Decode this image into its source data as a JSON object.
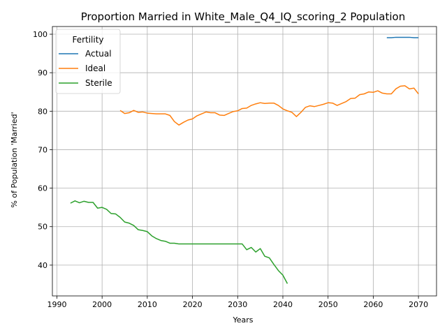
{
  "chart_data": {
    "type": "line",
    "title": "Proportion Married in White_Male_Q4_IQ_scoring_2 Population",
    "xlabel": "Years",
    "ylabel": "% of Population 'Married'",
    "xlim": [
      1989,
      2074
    ],
    "ylim": [
      32,
      102
    ],
    "xticks": [
      1990,
      2000,
      2010,
      2020,
      2030,
      2040,
      2050,
      2060,
      2070
    ],
    "yticks": [
      40,
      50,
      60,
      70,
      80,
      90,
      100
    ],
    "grid": true,
    "legend": {
      "title": "Fertility",
      "placement": "top-left"
    },
    "series": [
      {
        "name": "Actual",
        "color": "#1f77b4",
        "points": [
          [
            2063,
            99.1
          ],
          [
            2064,
            99.1
          ],
          [
            2065,
            99.2
          ],
          [
            2066,
            99.2
          ],
          [
            2067,
            99.2
          ],
          [
            2068,
            99.2
          ],
          [
            2069,
            99.1
          ],
          [
            2070,
            99.1
          ]
        ]
      },
      {
        "name": "Ideal",
        "color": "#ff7f0e",
        "points": [
          [
            2004,
            80.2
          ],
          [
            2005,
            79.4
          ],
          [
            2006,
            79.6
          ],
          [
            2007,
            80.2
          ],
          [
            2008,
            79.7
          ],
          [
            2009,
            79.8
          ],
          [
            2010,
            79.5
          ],
          [
            2011,
            79.4
          ],
          [
            2012,
            79.3
          ],
          [
            2013,
            79.3
          ],
          [
            2014,
            79.3
          ],
          [
            2015,
            78.9
          ],
          [
            2016,
            77.3
          ],
          [
            2017,
            76.4
          ],
          [
            2018,
            77.1
          ],
          [
            2019,
            77.7
          ],
          [
            2020,
            78.0
          ],
          [
            2021,
            78.8
          ],
          [
            2022,
            79.3
          ],
          [
            2023,
            79.8
          ],
          [
            2024,
            79.6
          ],
          [
            2025,
            79.6
          ],
          [
            2026,
            79.0
          ],
          [
            2027,
            78.9
          ],
          [
            2028,
            79.4
          ],
          [
            2029,
            79.9
          ],
          [
            2030,
            80.1
          ],
          [
            2031,
            80.7
          ],
          [
            2032,
            80.8
          ],
          [
            2033,
            81.5
          ],
          [
            2034,
            81.9
          ],
          [
            2035,
            82.2
          ],
          [
            2036,
            82.0
          ],
          [
            2037,
            82.1
          ],
          [
            2038,
            82.1
          ],
          [
            2039,
            81.5
          ],
          [
            2040,
            80.6
          ],
          [
            2041,
            80.1
          ],
          [
            2042,
            79.7
          ],
          [
            2043,
            78.6
          ],
          [
            2044,
            79.7
          ],
          [
            2045,
            81.0
          ],
          [
            2046,
            81.4
          ],
          [
            2047,
            81.2
          ],
          [
            2048,
            81.5
          ],
          [
            2049,
            81.8
          ],
          [
            2050,
            82.2
          ],
          [
            2051,
            82.1
          ],
          [
            2052,
            81.5
          ],
          [
            2053,
            82.0
          ],
          [
            2054,
            82.5
          ],
          [
            2055,
            83.3
          ],
          [
            2056,
            83.4
          ],
          [
            2057,
            84.3
          ],
          [
            2058,
            84.5
          ],
          [
            2059,
            85.0
          ],
          [
            2060,
            84.9
          ],
          [
            2061,
            85.3
          ],
          [
            2062,
            84.7
          ],
          [
            2063,
            84.5
          ],
          [
            2064,
            84.5
          ],
          [
            2065,
            85.8
          ],
          [
            2066,
            86.5
          ],
          [
            2067,
            86.6
          ],
          [
            2068,
            85.8
          ],
          [
            2069,
            86.0
          ],
          [
            2070,
            84.5
          ]
        ]
      },
      {
        "name": "Sterile",
        "color": "#2ca02c",
        "points": [
          [
            1993,
            56.1
          ],
          [
            1994,
            56.7
          ],
          [
            1995,
            56.2
          ],
          [
            1996,
            56.6
          ],
          [
            1997,
            56.3
          ],
          [
            1998,
            56.3
          ],
          [
            1999,
            54.8
          ],
          [
            2000,
            55.0
          ],
          [
            2001,
            54.5
          ],
          [
            2002,
            53.4
          ],
          [
            2003,
            53.3
          ],
          [
            2004,
            52.4
          ],
          [
            2005,
            51.2
          ],
          [
            2006,
            50.9
          ],
          [
            2007,
            50.3
          ],
          [
            2008,
            49.2
          ],
          [
            2009,
            49.0
          ],
          [
            2010,
            48.7
          ],
          [
            2011,
            47.6
          ],
          [
            2012,
            46.9
          ],
          [
            2013,
            46.4
          ],
          [
            2014,
            46.2
          ],
          [
            2015,
            45.7
          ],
          [
            2016,
            45.7
          ],
          [
            2017,
            45.5
          ],
          [
            2018,
            45.5
          ],
          [
            2019,
            45.5
          ],
          [
            2020,
            45.5
          ],
          [
            2021,
            45.5
          ],
          [
            2022,
            45.5
          ],
          [
            2023,
            45.5
          ],
          [
            2024,
            45.5
          ],
          [
            2025,
            45.5
          ],
          [
            2026,
            45.5
          ],
          [
            2027,
            45.5
          ],
          [
            2028,
            45.5
          ],
          [
            2029,
            45.5
          ],
          [
            2030,
            45.5
          ],
          [
            2031,
            45.5
          ],
          [
            2032,
            44.0
          ],
          [
            2033,
            44.6
          ],
          [
            2034,
            43.4
          ],
          [
            2035,
            44.3
          ],
          [
            2036,
            42.3
          ],
          [
            2037,
            41.9
          ],
          [
            2038,
            40.2
          ],
          [
            2039,
            38.6
          ],
          [
            2040,
            37.4
          ],
          [
            2041,
            35.2
          ]
        ]
      }
    ]
  }
}
